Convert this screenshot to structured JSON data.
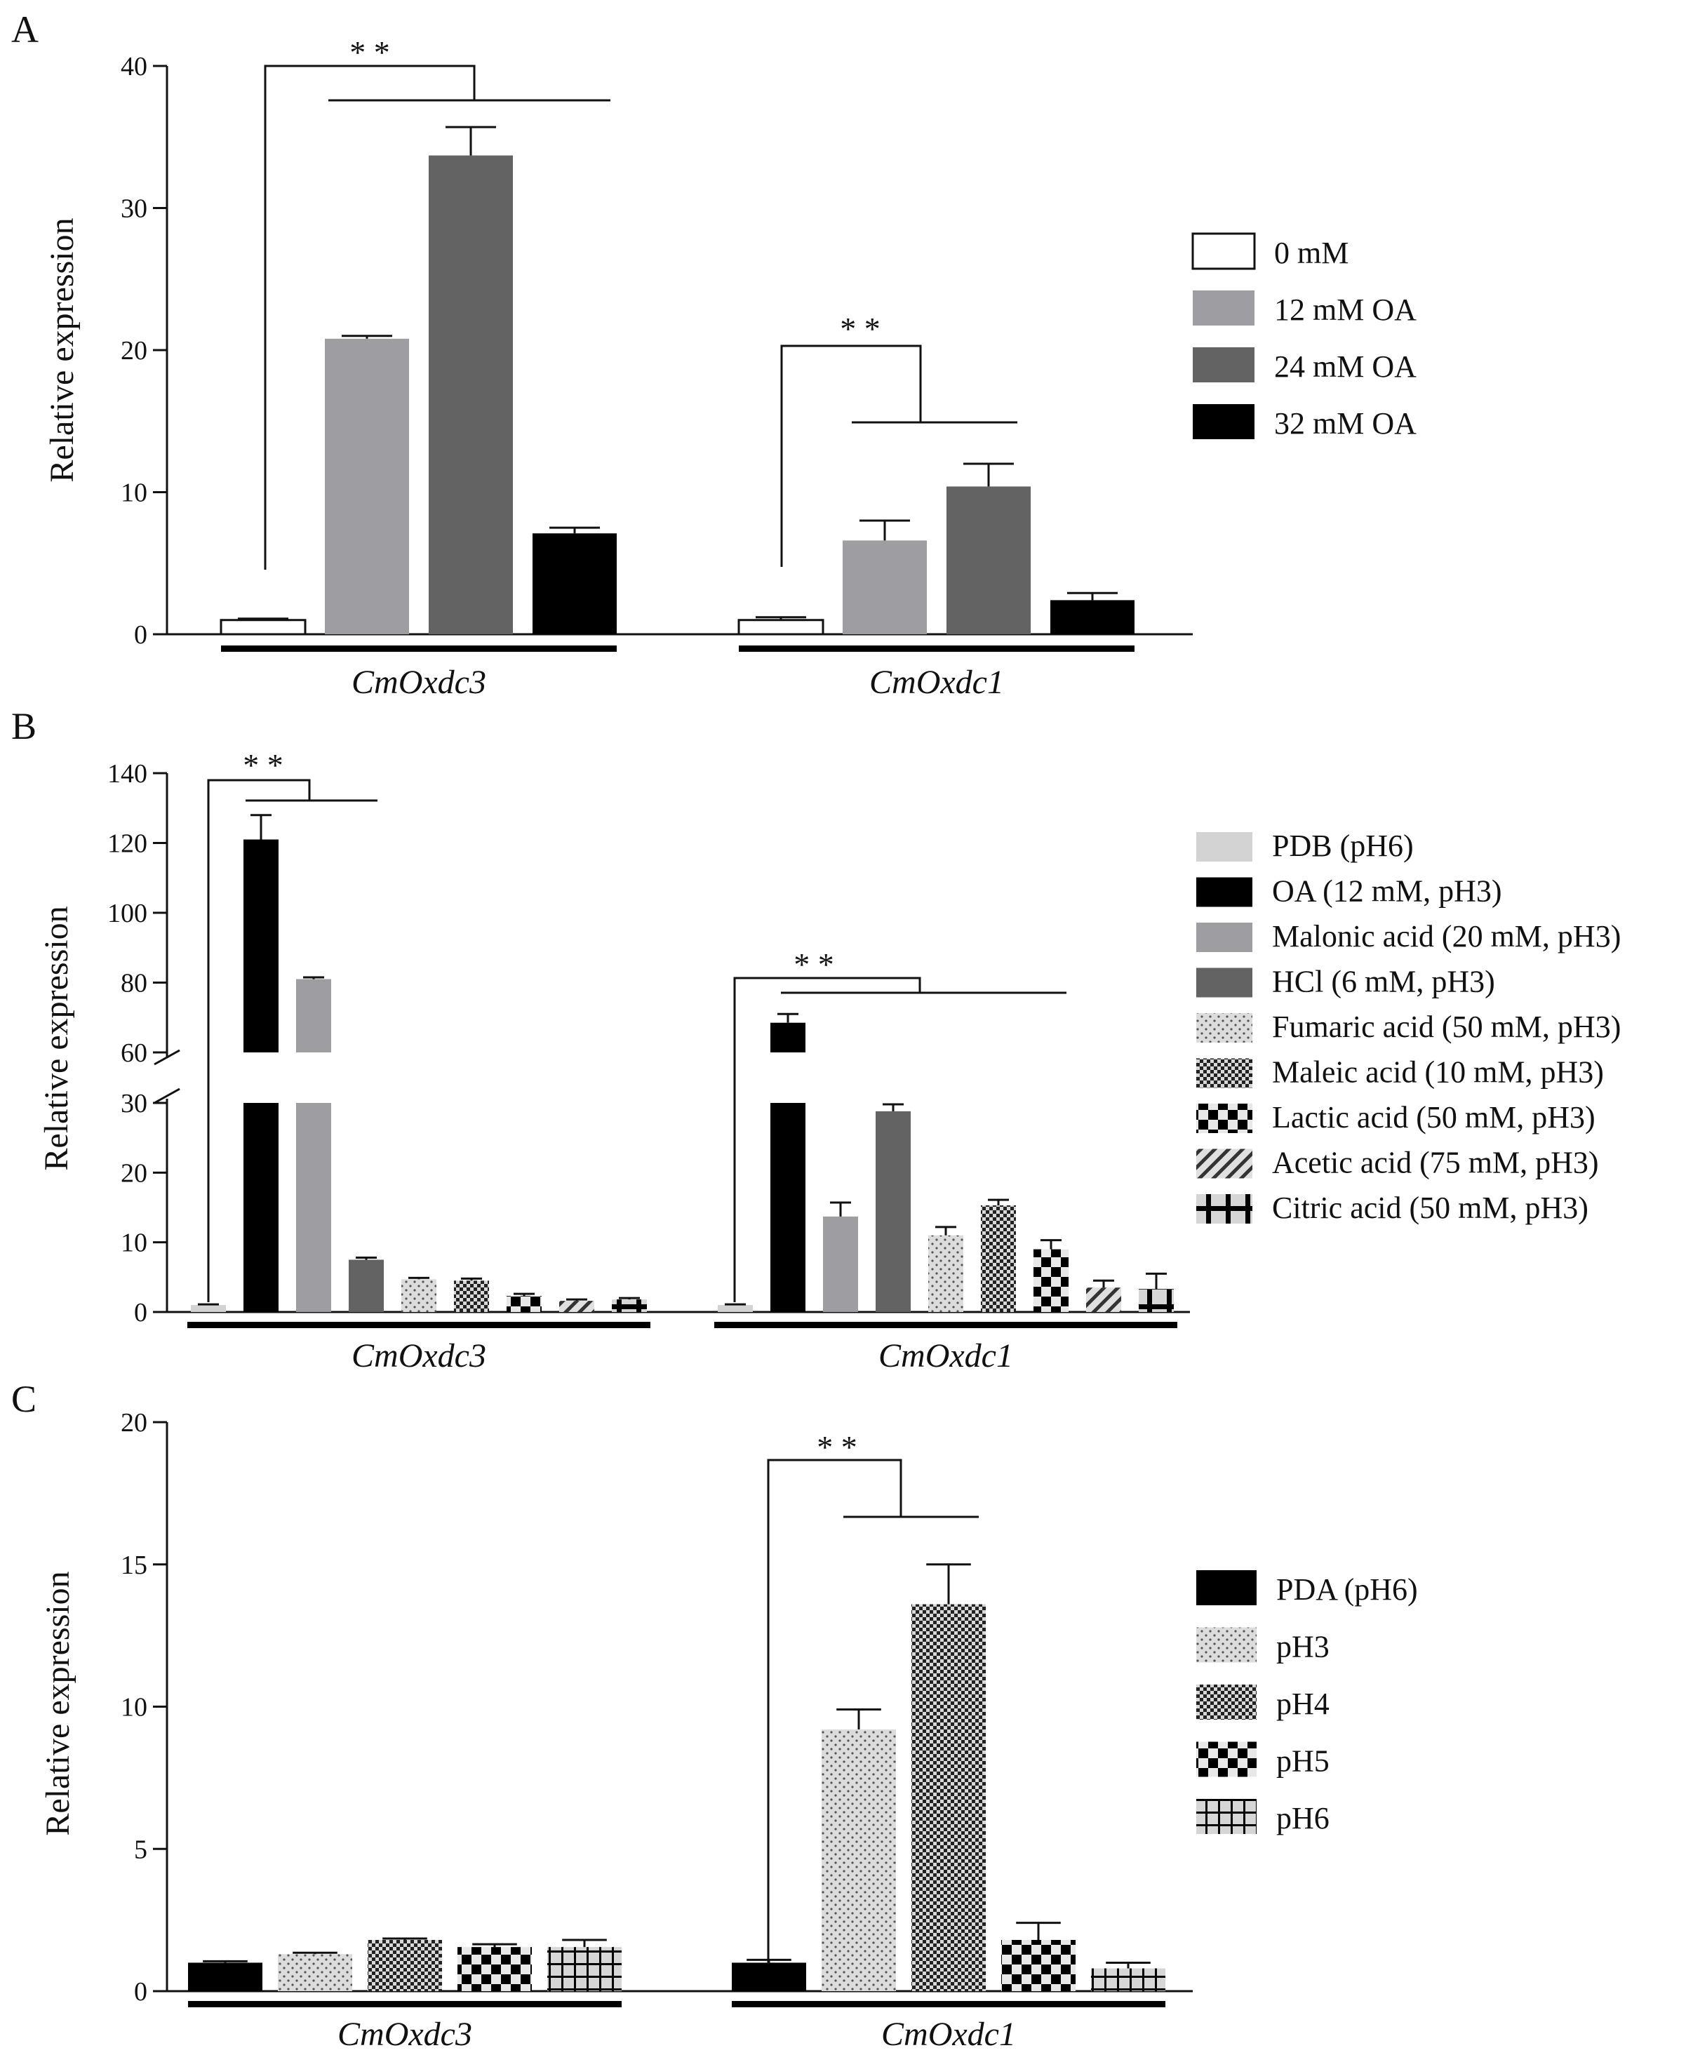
{
  "colors": {
    "white": "#ffffff",
    "light_gray": "#d3d3d3",
    "mid_gray": "#9e9ea2",
    "dark_gray": "#636363",
    "black": "#000000",
    "axis": "#111111"
  },
  "chart_data": [
    {
      "type": "bar",
      "panel": "A",
      "ylabel": "Relative expression",
      "ylim": [
        0,
        40
      ],
      "yticks": [
        0,
        10,
        20,
        30,
        40
      ],
      "categories": [
        "CmOxdc3",
        "CmOxdc1"
      ],
      "series": [
        {
          "name": "0 mM",
          "values": [
            1.0,
            1.0
          ],
          "errors": [
            0.1,
            0.2
          ],
          "fill": "white"
        },
        {
          "name": "12 mM OA",
          "values": [
            20.8,
            6.6
          ],
          "errors": [
            0.2,
            1.4
          ],
          "fill": "mid_gray"
        },
        {
          "name": "24 mM OA",
          "values": [
            33.7,
            10.4
          ],
          "errors": [
            2.0,
            1.6
          ],
          "fill": "dark_gray"
        },
        {
          "name": "32 mM OA",
          "values": [
            7.1,
            2.4
          ],
          "errors": [
            0.4,
            0.5
          ],
          "fill": "black"
        }
      ],
      "annotations": [
        "* *",
        "* *"
      ],
      "legend": "right"
    },
    {
      "type": "bar",
      "panel": "B",
      "ylabel": "Relative expression",
      "axis_break": [
        30,
        60
      ],
      "ylim": [
        0,
        140
      ],
      "yticks": [
        0,
        10,
        20,
        30,
        60,
        80,
        100,
        120,
        140
      ],
      "categories": [
        "CmOxdc3",
        "CmOxdc1"
      ],
      "series": [
        {
          "name": "PDB (pH6)",
          "values": [
            1.0,
            1.0
          ],
          "errors": [
            0.1,
            0.1
          ],
          "fill": "solid-light"
        },
        {
          "name": "OA (12 mM, pH3)",
          "values": [
            121.0,
            68.5
          ],
          "errors": [
            7.0,
            2.5
          ],
          "fill": "solid-black"
        },
        {
          "name": "Malonic acid (20 mM, pH3)",
          "values": [
            81.0,
            13.7
          ],
          "errors": [
            0.5,
            2.0
          ],
          "fill": "solid-mid"
        },
        {
          "name": "HCl (6 mM, pH3)",
          "values": [
            7.5,
            28.8
          ],
          "errors": [
            0.3,
            1.0
          ],
          "fill": "solid-dark"
        },
        {
          "name": "Fumaric acid (50 mM, pH3)",
          "values": [
            4.7,
            11.0
          ],
          "errors": [
            0.2,
            1.2
          ],
          "fill": "dots"
        },
        {
          "name": "Maleic acid (10 mM, pH3)",
          "values": [
            4.5,
            15.3
          ],
          "errors": [
            0.3,
            0.8
          ],
          "fill": "fine-check"
        },
        {
          "name": "Lactic acid (50 mM, pH3)",
          "values": [
            2.3,
            9.0
          ],
          "errors": [
            0.3,
            1.3
          ],
          "fill": "coarse-check"
        },
        {
          "name": "Acetic acid (75 mM, pH3)",
          "values": [
            1.6,
            3.5
          ],
          "errors": [
            0.2,
            1.0
          ],
          "fill": "diagonal"
        },
        {
          "name": "Citric acid (50 mM, pH3)",
          "values": [
            1.8,
            3.3
          ],
          "errors": [
            0.2,
            2.2
          ],
          "fill": "cross"
        }
      ],
      "annotations": [
        "* *",
        "* *"
      ],
      "legend": "right"
    },
    {
      "type": "bar",
      "panel": "C",
      "ylabel": "Relative expression",
      "ylim": [
        0,
        20
      ],
      "yticks": [
        0,
        5,
        10,
        15,
        20
      ],
      "categories": [
        "CmOxdc3",
        "CmOxdc1"
      ],
      "series": [
        {
          "name": "PDA (pH6)",
          "values": [
            1.0,
            1.0
          ],
          "errors": [
            0.05,
            0.1
          ],
          "fill": "solid-black"
        },
        {
          "name": "pH3",
          "values": [
            1.3,
            9.2
          ],
          "errors": [
            0.05,
            0.7
          ],
          "fill": "dots"
        },
        {
          "name": "pH4",
          "values": [
            1.8,
            13.6
          ],
          "errors": [
            0.05,
            1.4
          ],
          "fill": "fine-check"
        },
        {
          "name": "pH5",
          "values": [
            1.55,
            1.8
          ],
          "errors": [
            0.1,
            0.6
          ],
          "fill": "coarse-check"
        },
        {
          "name": "pH6",
          "values": [
            1.55,
            0.8
          ],
          "errors": [
            0.25,
            0.2
          ],
          "fill": "grid"
        }
      ],
      "annotations": [
        "* *"
      ],
      "legend": "right"
    }
  ]
}
